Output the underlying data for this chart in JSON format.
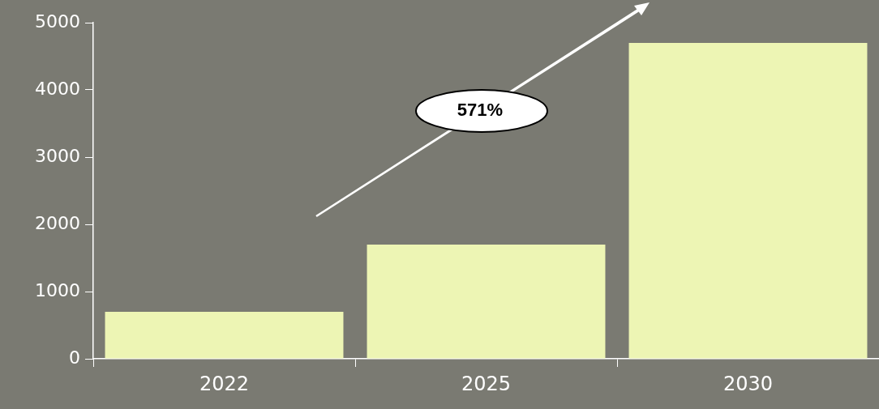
{
  "chart_data": {
    "type": "bar",
    "categories": [
      "2022",
      "2025",
      "2030"
    ],
    "values": [
      700,
      1700,
      4700
    ],
    "color": "#edf5b4",
    "ylim": [
      0,
      5000
    ],
    "yticks": [
      0,
      1000,
      2000,
      3000,
      4000,
      5000
    ],
    "grid": false,
    "annotations": [
      "571%"
    ]
  }
}
